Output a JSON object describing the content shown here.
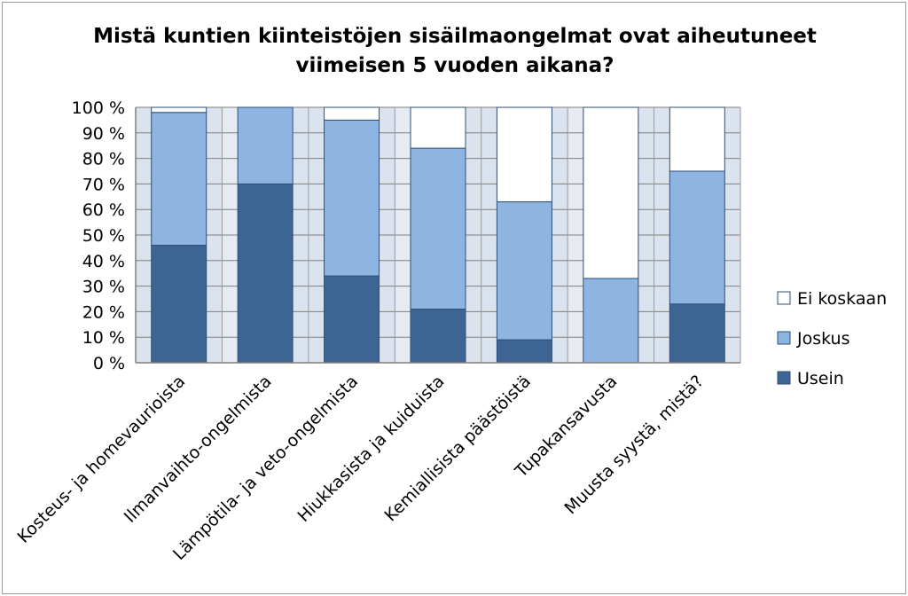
{
  "chart_data": {
    "type": "bar",
    "stacked": true,
    "percent_stacked": true,
    "title": "Mistä kuntien kiinteistöjen sisäilmaongelmat ovat aiheutuneet viimeisen 5 vuoden aikana?",
    "title_lines": [
      "Mistä kuntien kiinteistöjen sisäilmaongelmat ovat aiheutuneet",
      "viimeisen 5 vuoden aikana?"
    ],
    "categories": [
      "Kosteus- ja homevaurioista",
      "Ilmanvaihto-ongelmista",
      "Lämpötila- ja veto-ongelmista",
      "Hiukkasista ja kuiduista",
      "Kemiallisista päästöistä",
      "Tupakansavusta",
      "Muusta syystä, mistä?"
    ],
    "series": [
      {
        "name": "Usein",
        "color": "#3d6594",
        "values": [
          46,
          70,
          34,
          21,
          9,
          0,
          23
        ]
      },
      {
        "name": "Joskus",
        "color": "#8eb4e1",
        "values": [
          52,
          30,
          61,
          63,
          54,
          33,
          52
        ]
      },
      {
        "name": "Ei koskaan",
        "color": "#ffffff",
        "values": [
          2,
          0,
          5,
          16,
          37,
          67,
          25
        ]
      }
    ],
    "ylim": [
      0,
      100
    ],
    "y_ticks": [
      "0 %",
      "10 %",
      "20 %",
      "30 %",
      "40 %",
      "50 %",
      "60 %",
      "70 %",
      "80 %",
      "90 %",
      "100 %"
    ],
    "grid": true,
    "legend_position": "right",
    "legend_order": [
      "Ei koskaan",
      "Joskus",
      "Usein"
    ]
  }
}
